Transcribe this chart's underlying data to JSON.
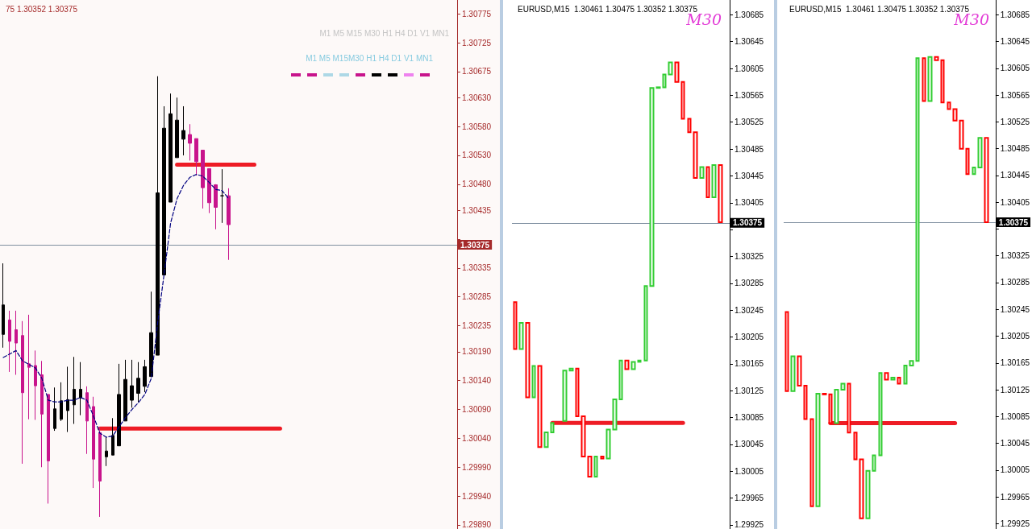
{
  "chart_data": [
    {
      "type": "candlestick",
      "title": "75 1.30352 1.30375",
      "annotations": [
        "M1 M5 M15 M30 H1 H4 D1 V1 MN1",
        "M1 M5 M15M30 H1 H4 D1 V1 MN1"
      ],
      "categories": [
        null,
        null,
        null,
        null,
        null,
        null,
        null,
        null,
        null,
        null,
        null,
        null,
        null,
        null,
        null,
        null,
        null,
        null,
        null,
        null,
        null,
        null,
        null,
        null,
        null,
        null,
        null,
        null,
        null,
        null,
        null,
        null,
        null,
        null,
        null,
        null,
        null,
        null,
        null,
        null,
        null,
        null,
        null,
        null,
        null,
        null,
        null,
        null,
        null,
        null,
        null,
        null,
        null,
        null,
        null,
        null,
        null,
        null,
        null,
        null,
        null,
        null,
        null,
        null,
        null,
        null,
        null,
        null,
        null,
        null,
        null
      ],
      "ylim": [
        1.29883,
        1.30799
      ],
      "yticks": [
        1.30775,
        1.30725,
        1.30675,
        {
          "value": 1.3063,
          "label": "1.30630"
        },
        {
          "value": 1.3058,
          "label": "1.30580"
        },
        {
          "value": 1.3053,
          "label": "1.30530"
        },
        {
          "value": 1.3048,
          "label": "1.30480"
        },
        1.30435,
        {
          "value": 1.30385,
          "label": null
        },
        1.30335,
        1.30285,
        1.30235,
        {
          "value": 1.3019,
          "label": "1.30190"
        },
        {
          "value": 1.3014,
          "label": "1.30140"
        },
        {
          "value": 1.3009,
          "label": "1.30090"
        },
        {
          "value": 1.3004,
          "label": "1.30040"
        },
        {
          "value": 1.2999,
          "label": "1.29990"
        },
        {
          "value": 1.2994,
          "label": "1.29940"
        },
        {
          "value": 1.2989,
          "label": "1.29890"
        }
      ],
      "tick_labels": "y",
      "ref_lines": [
        {
          "axis": "y",
          "value": 1.30375,
          "label": "1.30375",
          "color": "#7f8fa0"
        }
      ],
      "series": [
        {
          "ohlc": [
            [
              1.3022,
              1.30343,
              1.30197,
              1.30271
            ],
            [
              1.30245,
              1.30261,
              1.30155,
              1.30208
            ],
            [
              1.30228,
              1.30261,
              1.3015,
              1.30205
            ],
            [
              1.30218,
              1.30243,
              1.29996,
              1.30119
            ],
            [
              1.30169,
              1.30254,
              1.30073,
              1.30163
            ],
            [
              1.30166,
              1.30192,
              1.30072,
              1.30131
            ],
            [
              1.3015,
              1.30174,
              1.2999,
              1.30082
            ],
            [
              1.30116,
              1.30116,
              1.29927,
              1.30001
            ],
            [
              1.30057,
              1.30128,
              1.30053,
              1.30091
            ],
            [
              1.30073,
              1.30137,
              1.3007,
              1.30105
            ],
            [
              1.30088,
              1.30164,
              1.30051,
              1.30107
            ],
            [
              1.30098,
              1.30181,
              1.30065,
              1.30125
            ],
            [
              1.3011,
              1.30172,
              1.3008,
              1.30125
            ],
            [
              1.30119,
              1.3013,
              1.30013,
              1.3007
            ],
            [
              1.30095,
              1.30112,
              1.29954,
              1.30004
            ],
            [
              1.3005,
              1.3006,
              1.29904,
              1.29966
            ],
            [
              1.30008,
              1.30042,
              1.29992,
              1.30018
            ],
            [
              1.30011,
              1.30075,
              1.30011,
              1.30045
            ],
            [
              1.30027,
              1.30169,
              1.30027,
              1.30116
            ],
            [
              1.3007,
              1.30176,
              1.3007,
              1.30142
            ],
            [
              1.30106,
              1.30176,
              1.30093,
              1.30131
            ],
            [
              1.30118,
              1.30172,
              1.30103,
              1.30144
            ],
            [
              1.3013,
              1.30176,
              1.3012,
              1.30164
            ],
            [
              1.30147,
              1.30294,
              1.30147,
              1.30223
            ],
            [
              1.30184,
              1.30667,
              1.30184,
              1.30465
            ],
            [
              1.30323,
              1.30615,
              1.30323,
              1.30577
            ],
            [
              1.30449,
              1.30637,
              1.30449,
              1.30602
            ],
            [
              1.30526,
              1.3063,
              1.30526,
              1.30591
            ],
            [
              1.30558,
              1.30615,
              1.3053,
              1.30573
            ],
            [
              1.30566,
              1.30584,
              1.30521,
              1.30551
            ],
            [
              1.30559,
              1.30559,
              1.30495,
              1.30519
            ],
            [
              1.30539,
              1.30539,
              1.30438,
              1.30474
            ],
            [
              1.30507,
              1.30507,
              1.3043,
              1.30448
            ],
            [
              1.30479,
              1.3048,
              1.30402,
              1.3044
            ],
            [
              1.3046,
              1.30506,
              1.30413,
              1.3046
            ],
            [
              1.3046,
              1.30473,
              1.30349,
              1.3041
            ],
            null,
            null,
            null,
            null,
            null,
            null,
            null,
            null,
            null,
            null,
            null,
            null,
            null,
            null,
            null,
            null,
            null,
            null,
            null,
            null,
            null,
            null,
            null,
            null,
            null,
            null,
            null,
            null,
            null,
            null,
            null,
            null,
            null,
            null,
            null
          ],
          "colors": [
            "#000000",
            "#c8148c",
            "#c8148c",
            "#c8148c",
            "#c8148c",
            "#c8148c",
            "#c8148c",
            "#c8148c",
            "#000000",
            "#000000",
            "#000000",
            "#000000",
            "#000000",
            "#c8148c",
            "#c8148c",
            "#c8148c",
            "#000000",
            "#000000",
            "#000000",
            "#000000",
            "#000000",
            "#000000",
            "#000000",
            "#000000",
            "#000000",
            "#000000",
            "#000000",
            "#000000",
            "#000000",
            "#c8148c",
            "#c8148c",
            "#c8148c",
            "#c8148c",
            "#c8148c",
            "#000000",
            "#c8148c",
            null,
            null,
            null,
            null,
            null,
            null,
            null,
            null,
            null,
            null,
            null,
            null,
            null,
            null,
            null,
            null,
            null,
            null,
            null,
            null,
            null,
            null,
            null,
            null,
            null,
            null,
            null,
            null,
            null,
            null,
            null,
            null,
            null,
            null,
            null
          ]
        },
        {
          "type": "line",
          "color": "#000080",
          "line_style": "dashed",
          "values": [
            1.3018,
            1.30186,
            1.30192,
            1.30174,
            1.30168,
            1.30162,
            1.30144,
            1.30106,
            1.30103,
            1.30103,
            1.30106,
            1.30106,
            1.30111,
            1.30106,
            1.30079,
            1.30049,
            1.30042,
            1.30044,
            1.3006,
            1.30076,
            1.3009,
            1.30102,
            1.30116,
            1.30144,
            1.30241,
            1.30325,
            1.30413,
            1.30455,
            1.30478,
            1.30492,
            1.30497,
            1.30494,
            1.30483,
            1.30471,
            1.30469,
            1.30455,
            null,
            null,
            null,
            null,
            null,
            null,
            null,
            null,
            null,
            null,
            null,
            null,
            null,
            null,
            null,
            null,
            null,
            null,
            null,
            null,
            null,
            null,
            null,
            null,
            null,
            null,
            null,
            null,
            null,
            null,
            null,
            null,
            null,
            null,
            null
          ]
        },
        {
          "type": "line",
          "color": "#ee1c25",
          "line_style": "solid",
          "values": [
            null,
            null,
            null,
            null,
            null,
            null,
            null,
            null,
            null,
            null,
            null,
            null,
            null,
            null,
            null,
            1.30057,
            1.30057,
            1.30057,
            1.30057,
            1.30057,
            1.30057,
            1.30057,
            1.30057,
            1.30057,
            1.30057,
            1.30057,
            1.30057,
            1.30057,
            1.30057,
            1.30057,
            1.30057,
            1.30057,
            1.30057,
            1.30057,
            1.30057,
            1.30057,
            1.30057,
            1.30057,
            1.30057,
            1.30057,
            1.30057,
            1.30057,
            1.30057,
            1.30057,
            null,
            null,
            null,
            null,
            null,
            null,
            null,
            null,
            null,
            null,
            null,
            null,
            null,
            null,
            null,
            null,
            null,
            null,
            null,
            null,
            null,
            null,
            null,
            null,
            null,
            null,
            null
          ]
        },
        {
          "type": "line",
          "color": "#ee1c25",
          "line_style": "solid",
          "values": [
            null,
            null,
            null,
            null,
            null,
            null,
            null,
            null,
            null,
            null,
            null,
            null,
            null,
            null,
            null,
            null,
            null,
            null,
            null,
            null,
            null,
            null,
            null,
            null,
            null,
            null,
            null,
            1.30514,
            1.30514,
            1.30514,
            1.30514,
            1.30514,
            1.30514,
            1.30514,
            1.30514,
            1.30514,
            1.30514,
            1.30514,
            1.30514,
            1.30514,
            null,
            null,
            null,
            null,
            null,
            null,
            null,
            null,
            null,
            null,
            null,
            null,
            null,
            null,
            null,
            null,
            null,
            null,
            null,
            null,
            null,
            null,
            null,
            null,
            null,
            null,
            null,
            null,
            null,
            null,
            null
          ]
        }
      ]
    },
    {
      "type": "candlestick",
      "title": "EURUSD,M15  1.30461 1.30475 1.30352 1.30375",
      "annotations": [
        "M30"
      ],
      "categories": [
        null,
        null,
        null,
        null,
        null,
        null,
        null,
        null,
        null,
        null,
        null,
        null,
        null,
        null,
        null,
        null,
        null,
        null,
        null,
        null,
        null,
        null,
        null,
        null,
        null,
        null,
        null,
        null,
        null,
        null,
        null,
        null,
        null,
        null,
        null
      ],
      "ylim": [
        1.29919,
        1.30707
      ],
      "yticks": [
        1.30685,
        1.30645,
        1.30605,
        1.30565,
        1.30525,
        1.30485,
        1.30445,
        1.30405,
        {
          "value": 1.30365,
          "label": null
        },
        1.30325,
        1.30285,
        1.30245,
        1.30205,
        1.30165,
        1.30125,
        1.30085,
        1.30045,
        1.30005,
        1.29965,
        1.29925
      ],
      "tick_labels": "y",
      "ref_lines": [
        {
          "axis": "y",
          "value": 1.30375,
          "label": "1.30375",
          "color": "#7f8fa0"
        }
      ],
      "series": [
        {
          "ohlc": [
            [
              1.30257,
              1.30257,
              1.30187,
              1.30187
            ],
            [
              1.30187,
              1.30226,
              1.30187,
              1.30226
            ],
            [
              1.30226,
              1.30226,
              1.30115,
              1.30115
            ],
            [
              1.30115,
              1.30162,
              1.30115,
              1.30162
            ],
            [
              1.30162,
              1.30162,
              1.30041,
              1.30041
            ],
            [
              1.30041,
              1.30063,
              1.30041,
              1.30063
            ],
            [
              1.30063,
              1.30077,
              1.30063,
              1.30077
            ],
            null,
            [
              1.3008,
              1.30155,
              1.3008,
              1.30155
            ],
            [
              1.30155,
              1.30158,
              1.30155,
              1.30158
            ],
            [
              1.30158,
              1.30158,
              1.30087,
              1.30087
            ],
            [
              1.30087,
              1.30087,
              1.30027,
              1.30027
            ],
            [
              1.30027,
              1.30027,
              1.29997,
              1.29997
            ],
            [
              1.29997,
              1.30027,
              1.29997,
              1.30027
            ],
            [
              1.30027,
              1.30027,
              1.30024,
              1.30024
            ],
            [
              1.30024,
              1.30067,
              1.30024,
              1.30067
            ],
            [
              1.30067,
              1.30112,
              1.30067,
              1.30112
            ],
            [
              1.30112,
              1.3017,
              1.30112,
              1.3017
            ],
            [
              1.3017,
              1.3017,
              1.30157,
              1.30157
            ],
            [
              1.30157,
              1.30168,
              1.30157,
              1.30168
            ],
            [
              1.30168,
              1.3017,
              1.30168,
              1.3017
            ],
            [
              1.3017,
              1.30281,
              1.3017,
              1.30281
            ],
            [
              1.30281,
              1.30576,
              1.30281,
              1.30576
            ],
            [
              1.30576,
              1.30577,
              1.30576,
              1.30577
            ],
            [
              1.30577,
              1.30596,
              1.30577,
              1.30596
            ],
            [
              1.30596,
              1.30614,
              1.30596,
              1.30614
            ],
            [
              1.30614,
              1.30614,
              1.30585,
              1.30585
            ],
            [
              1.30585,
              1.30585,
              1.3053,
              1.3053
            ],
            [
              1.3053,
              1.3053,
              1.3051,
              1.3051
            ],
            [
              1.3051,
              1.3051,
              1.30442,
              1.30442
            ],
            [
              1.30442,
              1.30458,
              1.30442,
              1.30458
            ],
            [
              1.30458,
              1.30458,
              1.30413,
              1.30413
            ],
            [
              1.30413,
              1.30461,
              1.30413,
              1.30461
            ],
            [
              1.30461,
              1.30461,
              1.30376,
              1.30376
            ],
            null
          ],
          "colors": [
            "#ff0000",
            "#32cd32",
            "#ff0000",
            "#32cd32",
            "#ff0000",
            "#32cd32",
            "#32cd32",
            null,
            "#32cd32",
            "#32cd32",
            "#ff0000",
            "#ff0000",
            "#ff0000",
            "#32cd32",
            "#ff0000",
            "#32cd32",
            "#32cd32",
            "#32cd32",
            "#ff0000",
            "#32cd32",
            "#32cd32",
            "#32cd32",
            "#32cd32",
            "#32cd32",
            "#32cd32",
            "#32cd32",
            "#ff0000",
            "#ff0000",
            "#ff0000",
            "#ff0000",
            "#32cd32",
            "#ff0000",
            "#32cd32",
            "#ff0000",
            null
          ]
        },
        {
          "type": "line",
          "color": "#ee1c25",
          "line_style": "solid",
          "values": [
            null,
            null,
            null,
            null,
            null,
            null,
            1.30077,
            1.30077,
            1.30077,
            1.30077,
            1.30077,
            1.30077,
            1.30077,
            1.30077,
            1.30077,
            1.30077,
            1.30077,
            1.30077,
            1.30077,
            1.30077,
            1.30077,
            1.30077,
            1.30077,
            1.30077,
            1.30077,
            1.30077,
            1.30077,
            1.30077,
            null,
            null,
            null,
            null,
            null,
            null,
            null
          ]
        }
      ]
    },
    {
      "type": "candlestick",
      "title": "EURUSD,M15  1.30461 1.30475 1.30352 1.30375",
      "annotations": [
        "M30"
      ],
      "categories": [
        null,
        null,
        null,
        null,
        null,
        null,
        null,
        null,
        null,
        null,
        null,
        null,
        null,
        null,
        null,
        null,
        null,
        null,
        null,
        null,
        null,
        null,
        null,
        null,
        null,
        null,
        null,
        null,
        null,
        null,
        null,
        null,
        null,
        null
      ],
      "ylim": [
        1.29917,
        1.30707
      ],
      "yticks": [
        1.30685,
        1.30645,
        1.30605,
        1.30565,
        1.30525,
        1.30485,
        1.30445,
        1.30405,
        {
          "value": 1.30365,
          "label": null
        },
        1.30325,
        1.30285,
        1.30245,
        1.30205,
        1.30165,
        1.30125,
        1.30085,
        1.30045,
        1.30005,
        1.29965,
        1.29925
      ],
      "tick_labels": "y",
      "ref_lines": [
        {
          "axis": "y",
          "value": 1.30375,
          "label": "1.30375",
          "color": "#7f8fa0"
        }
      ],
      "series": [
        {
          "ohlc": [
            [
              1.30241,
              1.30241,
              1.30123,
              1.30123
            ],
            [
              1.30123,
              1.30175,
              1.30123,
              1.30175
            ],
            [
              1.30175,
              1.30175,
              1.30131,
              1.30131
            ],
            [
              1.30131,
              1.30131,
              1.30081,
              1.30081
            ],
            [
              1.30081,
              1.30081,
              1.29951,
              1.29951
            ],
            [
              1.29951,
              1.30119,
              1.29951,
              1.30119
            ],
            [
              1.30119,
              1.30119,
              1.30118,
              1.30118
            ],
            [
              1.30118,
              1.30118,
              1.30075,
              1.30075
            ],
            [
              1.30075,
              1.30125,
              1.30075,
              1.30125
            ],
            [
              1.30125,
              1.30134,
              1.30125,
              1.30134
            ],
            [
              1.30134,
              1.30134,
              1.30061,
              1.30061
            ],
            [
              1.30061,
              1.30061,
              1.30021,
              1.30021
            ],
            [
              1.30021,
              1.30021,
              1.29933,
              1.29933
            ],
            [
              1.29933,
              1.30004,
              1.29933,
              1.30004
            ],
            [
              1.30004,
              1.30027,
              1.30004,
              1.30027
            ],
            [
              1.30027,
              1.3015,
              1.30027,
              1.3015
            ],
            [
              1.3015,
              1.3015,
              1.3014,
              1.3014
            ],
            [
              1.3014,
              1.30143,
              1.3014,
              1.30143
            ],
            [
              1.30143,
              1.30143,
              1.30134,
              1.30134
            ],
            [
              1.30134,
              1.30161,
              1.30134,
              1.30161
            ],
            [
              1.30161,
              1.30168,
              1.30161,
              1.30168
            ],
            [
              1.30168,
              1.3062,
              1.30168,
              1.3062
            ],
            [
              1.3062,
              1.3062,
              1.30556,
              1.30556
            ],
            [
              1.30556,
              1.30622,
              1.30556,
              1.30622
            ],
            [
              1.30622,
              1.30622,
              1.30617,
              1.30617
            ],
            [
              1.30617,
              1.30617,
              1.30554,
              1.30554
            ],
            [
              1.30554,
              1.30554,
              1.30544,
              1.30544
            ],
            [
              1.30544,
              1.30544,
              1.30527,
              1.30527
            ],
            [
              1.30527,
              1.30527,
              1.30485,
              1.30485
            ],
            [
              1.30485,
              1.30485,
              1.30447,
              1.30447
            ],
            [
              1.30447,
              1.30457,
              1.30447,
              1.30457
            ],
            [
              1.30457,
              1.30501,
              1.30457,
              1.30501
            ],
            [
              1.30501,
              1.30501,
              1.30375,
              1.30375
            ],
            null
          ],
          "colors": [
            "#ff0000",
            "#32cd32",
            "#ff0000",
            "#ff0000",
            "#ff0000",
            "#32cd32",
            "#ff0000",
            "#ff0000",
            "#32cd32",
            "#32cd32",
            "#ff0000",
            "#ff0000",
            "#ff0000",
            "#32cd32",
            "#32cd32",
            "#32cd32",
            "#ff0000",
            "#32cd32",
            "#ff0000",
            "#32cd32",
            "#32cd32",
            "#32cd32",
            "#ff0000",
            "#32cd32",
            "#ff0000",
            "#ff0000",
            "#ff0000",
            "#ff0000",
            "#ff0000",
            "#ff0000",
            "#32cd32",
            "#32cd32",
            "#ff0000",
            null
          ]
        },
        {
          "type": "line",
          "color": "#ee1c25",
          "line_style": "solid",
          "values": [
            null,
            null,
            null,
            null,
            null,
            null,
            null,
            1.30075,
            1.30075,
            1.30075,
            1.30075,
            1.30075,
            1.30075,
            1.30075,
            1.30075,
            1.30075,
            1.30075,
            1.30075,
            1.30075,
            1.30075,
            1.30075,
            1.30075,
            1.30075,
            1.30075,
            1.30075,
            1.30075,
            1.30075,
            1.30075,
            null,
            null,
            null,
            null,
            null,
            null
          ]
        }
      ]
    }
  ]
}
